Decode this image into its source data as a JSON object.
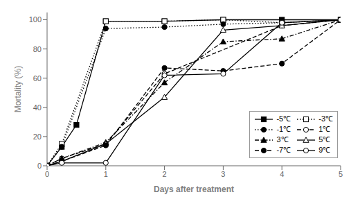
{
  "chart_data": {
    "type": "line",
    "xlabel": "Days after treatment",
    "ylabel": "Mortality (%)",
    "xlim": [
      0,
      5
    ],
    "ylim": [
      0,
      105
    ],
    "xticks": [
      0,
      1,
      2,
      3,
      4,
      5
    ],
    "yticks": [
      0,
      20,
      40,
      60,
      80,
      100
    ],
    "grid": false,
    "legend": "lower right",
    "series": [
      {
        "name": "-5℃",
        "color": "#000000",
        "marker": "square",
        "line_style": "solid",
        "x": [
          0,
          0.25,
          0.5,
          1,
          2,
          3,
          4,
          5
        ],
        "values": [
          0,
          13,
          28,
          99,
          99,
          100,
          100,
          100
        ]
      },
      {
        "name": "-3℃",
        "color": "#000000",
        "marker": "square-open",
        "line_style": "dotted",
        "x": [
          0,
          0.25,
          1,
          2,
          3,
          4,
          5
        ],
        "values": [
          0,
          15,
          99,
          99,
          100,
          98,
          100
        ]
      },
      {
        "name": "-1℃",
        "color": "#000000",
        "marker": "circle",
        "line_style": "dotted",
        "x": [
          0,
          0.25,
          1,
          2,
          3,
          4,
          5
        ],
        "values": [
          0,
          13,
          94,
          95,
          97,
          98,
          100
        ]
      },
      {
        "name": "1℃",
        "color": "#000000",
        "marker": "circle-open",
        "line_style": "dashed",
        "x": [
          0,
          0.25,
          1,
          2,
          4,
          5
        ],
        "values": [
          0,
          5,
          15,
          63,
          96,
          100
        ]
      },
      {
        "name": "3℃",
        "color": "#000000",
        "marker": "triangle",
        "line_style": "dashdot",
        "x": [
          0,
          0.25,
          1,
          2,
          3,
          4,
          5
        ],
        "values": [
          0,
          5,
          16,
          57,
          85,
          87,
          100
        ]
      },
      {
        "name": "5℃",
        "color": "#000000",
        "marker": "triangle-open",
        "line_style": "solid",
        "x": [
          0,
          0.25,
          1,
          2,
          3,
          4,
          5
        ],
        "values": [
          0,
          3,
          15,
          47,
          93,
          96,
          100
        ]
      },
      {
        "name": "-7℃",
        "color": "#000000",
        "marker": "circle",
        "line_style": "dashed",
        "x": [
          0,
          0.25,
          1,
          2,
          3,
          4,
          5
        ],
        "values": [
          0,
          3,
          14,
          67,
          65,
          70,
          100
        ]
      },
      {
        "name": "9℃",
        "color": "#000000",
        "marker": "circle-open",
        "line_style": "solid",
        "x": [
          0,
          0.25,
          1,
          2,
          3,
          4,
          5
        ],
        "values": [
          0,
          2,
          2,
          62,
          63,
          98,
          100
        ]
      }
    ]
  }
}
